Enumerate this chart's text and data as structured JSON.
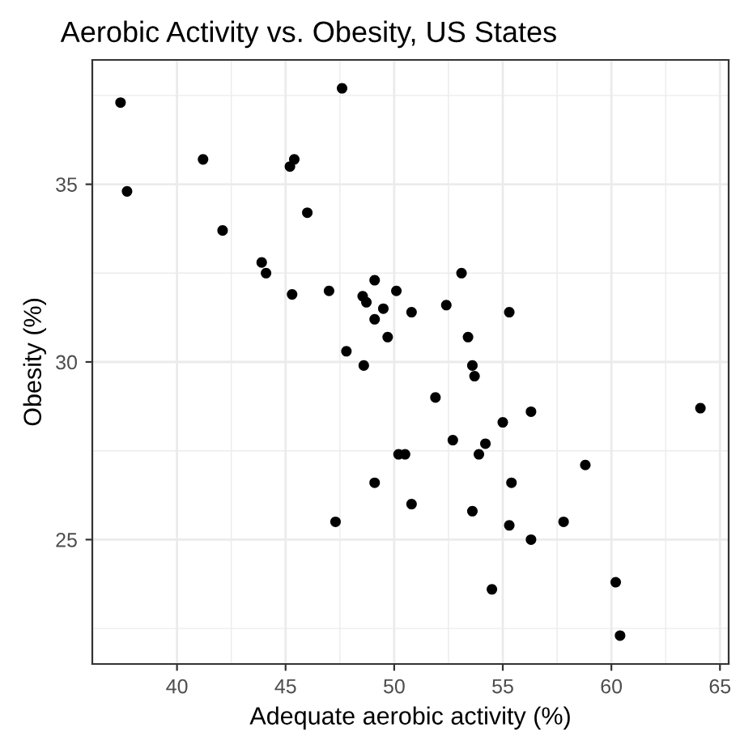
{
  "chart_data": {
    "type": "scatter",
    "title": "Aerobic Activity vs. Obesity, US States",
    "xlabel": "Adequate aerobic activity (%)",
    "ylabel": "Obesity (%)",
    "x": [
      37.4,
      47.6,
      41.2,
      45.4,
      45.2,
      37.7,
      46.0,
      42.1,
      43.9,
      44.1,
      45.3,
      47.0,
      49.1,
      50.1,
      48.55,
      48.72,
      49.5,
      49.1,
      50.8,
      49.7,
      47.8,
      48.6,
      50.2,
      50.5,
      49.1,
      50.8,
      47.3,
      53.1,
      52.4,
      55.3,
      53.4,
      53.6,
      53.7,
      51.9,
      56.3,
      64.1,
      55.0,
      52.7,
      54.2,
      53.9,
      58.8,
      55.4,
      53.6,
      55.3,
      57.8,
      56.3,
      54.5,
      60.2,
      60.4
    ],
    "values": [
      37.3,
      37.7,
      35.7,
      35.7,
      35.5,
      34.8,
      34.2,
      33.7,
      32.8,
      32.5,
      31.9,
      32.0,
      32.3,
      32.0,
      31.85,
      31.68,
      31.5,
      31.2,
      31.4,
      30.7,
      30.3,
      29.9,
      27.4,
      27.4,
      26.6,
      26.0,
      25.5,
      32.5,
      31.6,
      31.4,
      30.7,
      29.9,
      29.6,
      29.0,
      28.6,
      28.7,
      28.3,
      27.8,
      27.7,
      27.4,
      27.1,
      26.6,
      25.8,
      25.4,
      25.5,
      25.0,
      23.6,
      23.8,
      22.3
    ],
    "color": "#000000",
    "marker": "circle",
    "xlim": [
      36.1,
      65.4
    ],
    "ylim": [
      21.5,
      38.5
    ],
    "xticks": [
      40,
      45,
      50,
      55,
      60,
      65
    ],
    "yticks": [
      25,
      30,
      35
    ],
    "grid": true
  }
}
